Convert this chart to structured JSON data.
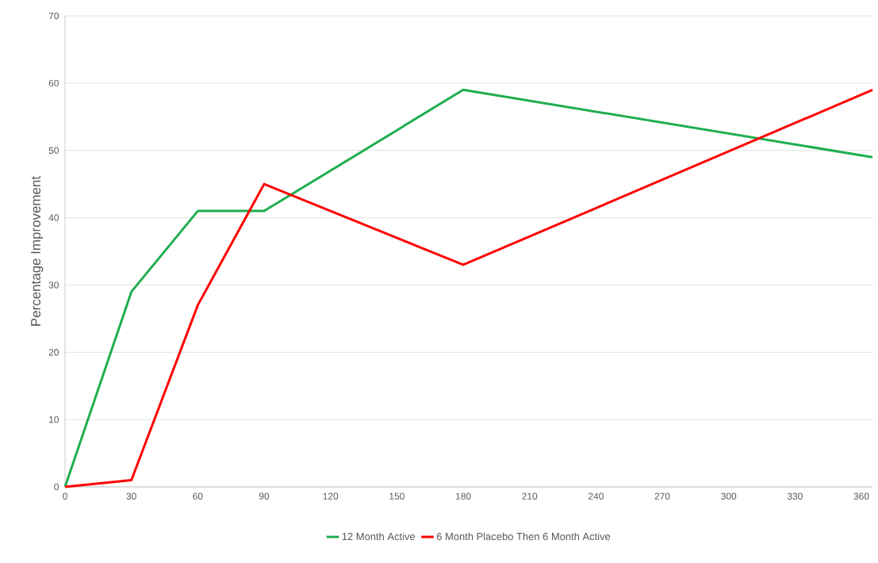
{
  "chart_data": {
    "type": "line",
    "ylabel": "Percentage Improvement",
    "xlim": [
      0,
      365
    ],
    "ylim": [
      0,
      70
    ],
    "xticks": [
      0,
      30,
      60,
      90,
      120,
      150,
      180,
      210,
      240,
      270,
      300,
      330,
      360
    ],
    "yticks": [
      0,
      10,
      20,
      30,
      40,
      50,
      60,
      70
    ],
    "grid": "y",
    "legend": "bottom",
    "marker": "none",
    "line_style": "solid",
    "x": [
      0,
      30,
      60,
      90,
      180,
      365
    ],
    "series": [
      {
        "name": "12 Month Active",
        "color": "#1fae4f",
        "values": [
          0,
          29,
          41,
          41,
          59,
          49
        ]
      },
      {
        "name": "6 Month Placebo Then 6 Month Active",
        "color": "#ff0000",
        "values": [
          0,
          1,
          27,
          45,
          33,
          59
        ]
      }
    ]
  }
}
